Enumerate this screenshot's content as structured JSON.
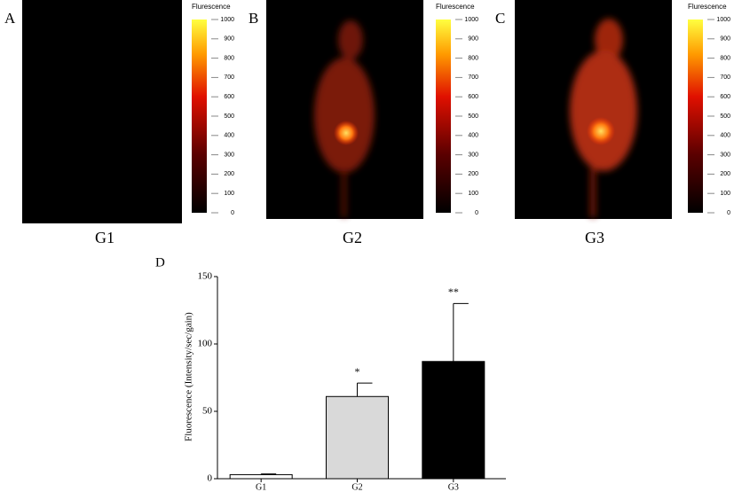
{
  "images": [
    {
      "label": "A",
      "caption": "G1",
      "colorbar": {
        "title": "Flurescence",
        "ticks": [
          0,
          100,
          200,
          300,
          400,
          500,
          600,
          700,
          800,
          900,
          1000
        ]
      }
    },
    {
      "label": "B",
      "caption": "G2",
      "colorbar": {
        "title": "Flurescence",
        "ticks": [
          0,
          100,
          200,
          300,
          400,
          500,
          600,
          700,
          800,
          900,
          1000
        ]
      }
    },
    {
      "label": "C",
      "caption": "G3",
      "colorbar": {
        "title": "Flurescence",
        "ticks": [
          0,
          100,
          200,
          300,
          400,
          500,
          600,
          700,
          800,
          900,
          1000
        ]
      }
    }
  ],
  "chart_data": {
    "type": "bar",
    "panel_label": "D",
    "ylabel": "Fluorescence (Intensity/sec/gain)",
    "categories": [
      "G1",
      "G2",
      "G3"
    ],
    "values": [
      3,
      61,
      87
    ],
    "errors": [
      0.5,
      10,
      43
    ],
    "colors": [
      "#ffffff",
      "#d9d9d9",
      "#000000"
    ],
    "annotations": [
      {
        "text": "*",
        "category": "G2"
      },
      {
        "text": "**",
        "category": "G3"
      }
    ],
    "ylim": [
      0,
      150
    ],
    "yticks": [
      0,
      50,
      100,
      150
    ]
  }
}
